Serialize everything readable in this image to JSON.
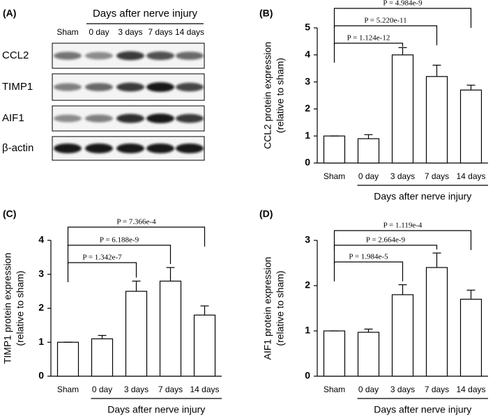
{
  "panel_a": {
    "label": "(A)",
    "header": "Days after nerve injury",
    "lanes": [
      "Sham",
      "0 day",
      "3 days",
      "7 days",
      "14 days"
    ],
    "rows": [
      "CCL2",
      "TIMP1",
      "AIF1",
      "β-actin"
    ]
  },
  "chart_data": [
    {
      "type": "bar",
      "panel": "(B)",
      "ylabel": [
        "CCL2 protein expression",
        "(relative to sham)"
      ],
      "xlabel": "Days after nerve injury",
      "categories": [
        "Sham",
        "0 day",
        "3 days",
        "7 days",
        "14 days"
      ],
      "values": [
        1,
        0.9,
        4.0,
        3.2,
        2.7
      ],
      "errors": [
        0,
        0.15,
        0.27,
        0.42,
        0.18
      ],
      "color": "#ffffff",
      "ylim": [
        0,
        5
      ],
      "yticks": [
        0,
        1,
        2,
        3,
        4,
        5
      ],
      "comparisons": [
        {
          "label": "P = 1.124e-12",
          "between": [
            "Sham",
            "3 days"
          ]
        },
        {
          "label": "P = 5.220e-11",
          "between": [
            "Sham",
            "7 days"
          ]
        },
        {
          "label": "P = 4.984e-9",
          "between": [
            "Sham",
            "14 days"
          ]
        }
      ]
    },
    {
      "type": "bar",
      "panel": "(C)",
      "ylabel": [
        "TIMP1 protein expression",
        "(relative to sham)"
      ],
      "xlabel": "Days after nerve injury",
      "categories": [
        "Sham",
        "0 day",
        "3 days",
        "7 days",
        "14 days"
      ],
      "values": [
        1,
        1.1,
        2.5,
        2.8,
        1.8
      ],
      "errors": [
        0,
        0.1,
        0.3,
        0.4,
        0.27
      ],
      "color": "#ffffff",
      "ylim": [
        0,
        4
      ],
      "yticks": [
        0,
        1,
        2,
        3,
        4
      ],
      "comparisons": [
        {
          "label": "P = 1.342e-7",
          "between": [
            "Sham",
            "3 days"
          ]
        },
        {
          "label": "P = 6.188e-9",
          "between": [
            "Sham",
            "7 days"
          ]
        },
        {
          "label": "P = 7.366e-4",
          "between": [
            "Sham",
            "14 days"
          ]
        }
      ]
    },
    {
      "type": "bar",
      "panel": "(D)",
      "ylabel": [
        "AIF1 protein expression",
        "(relative to sham)"
      ],
      "xlabel": "Days after nerve injury",
      "categories": [
        "Sham",
        "0 day",
        "3 days",
        "7 days",
        "14 days"
      ],
      "values": [
        1,
        0.97,
        1.8,
        2.4,
        1.7
      ],
      "errors": [
        0,
        0.07,
        0.22,
        0.32,
        0.2
      ],
      "color": "#ffffff",
      "ylim": [
        0,
        3
      ],
      "yticks": [
        0,
        1,
        2,
        3
      ],
      "comparisons": [
        {
          "label": "P = 1.984e-5",
          "between": [
            "Sham",
            "3 days"
          ]
        },
        {
          "label": "P = 2.664e-9",
          "between": [
            "Sham",
            "7 days"
          ]
        },
        {
          "label": "P = 1.119e-4",
          "between": [
            "Sham",
            "14 days"
          ]
        }
      ]
    }
  ]
}
